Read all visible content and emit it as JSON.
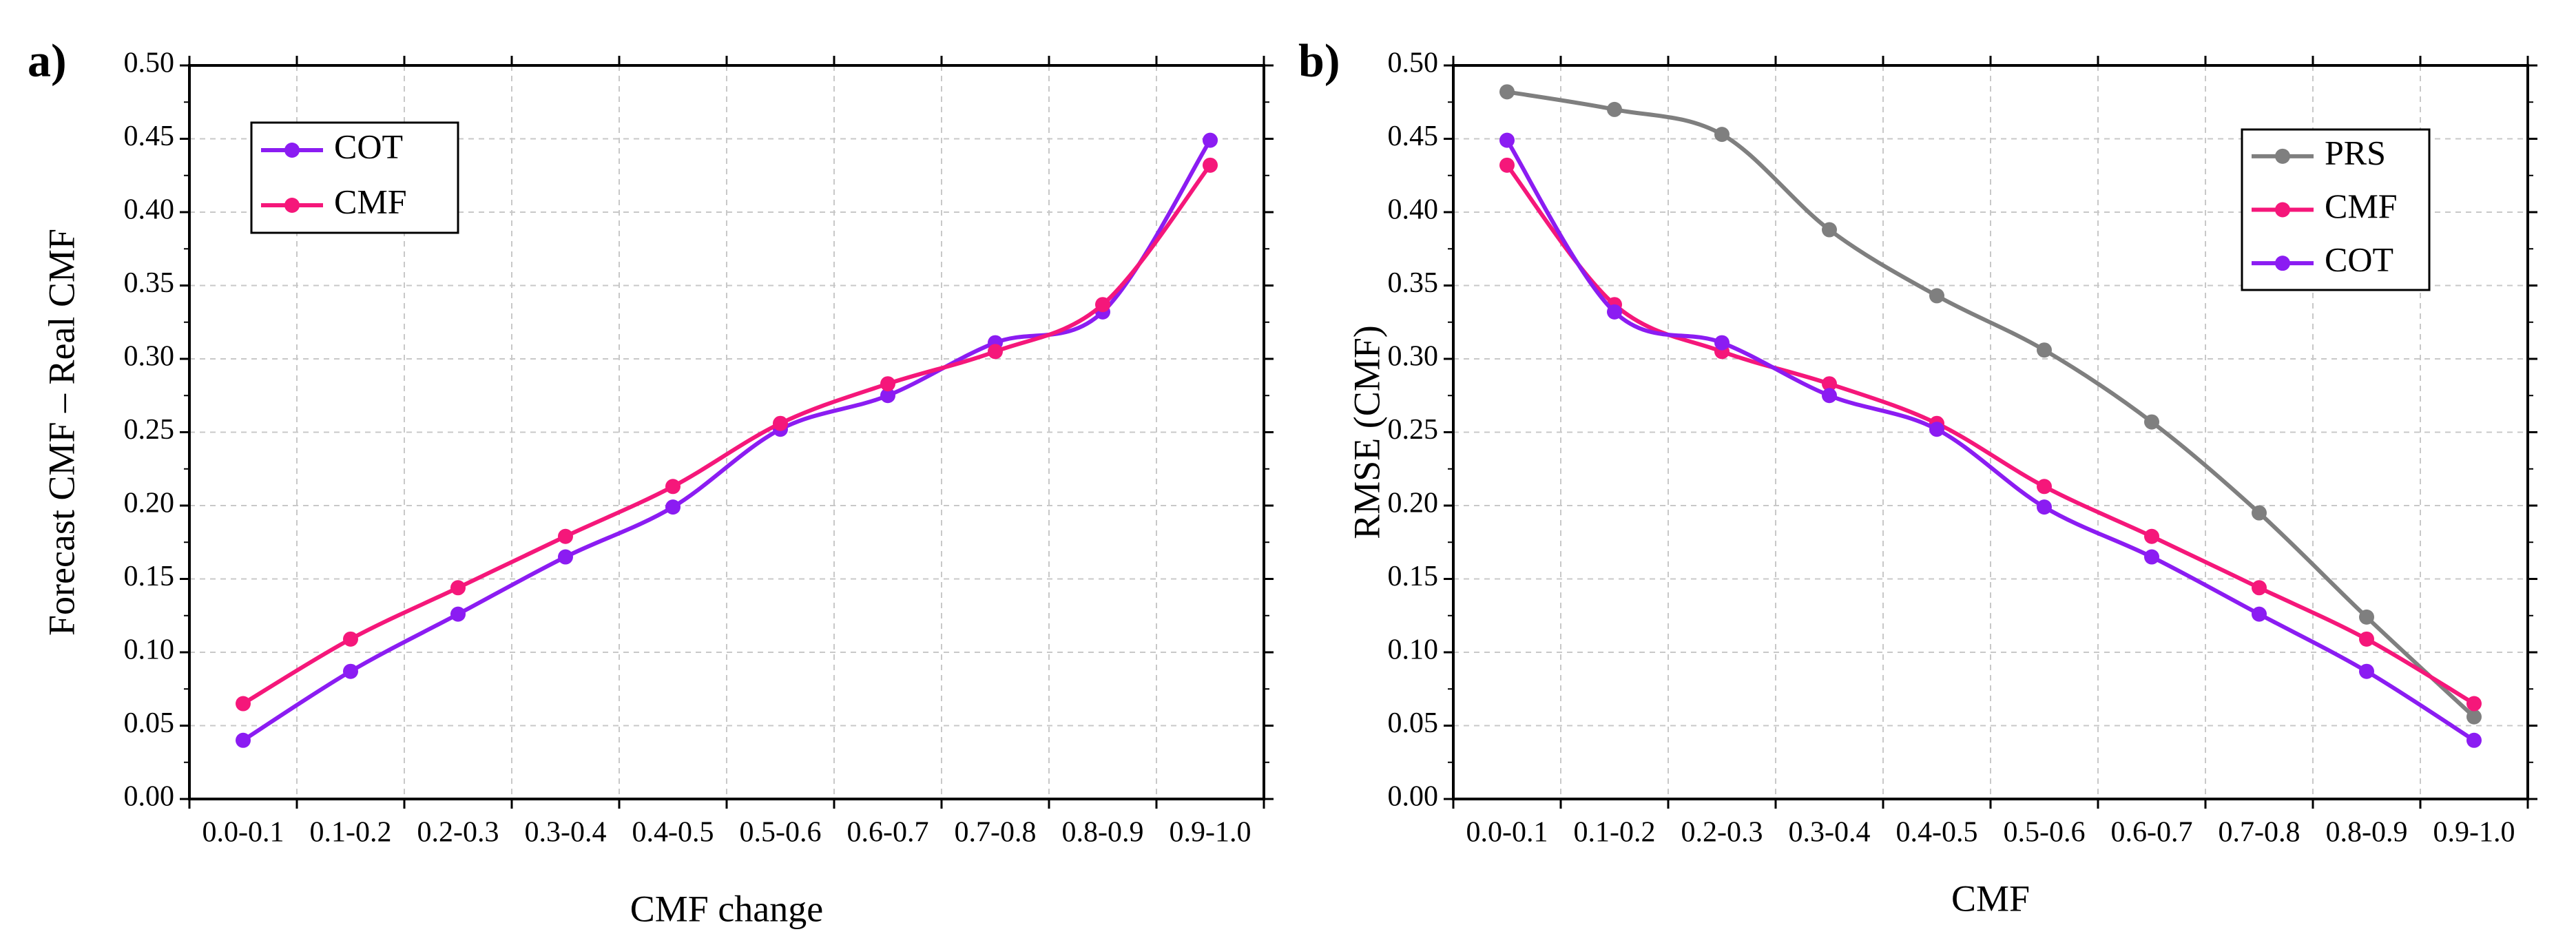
{
  "figure": {
    "panel_labels": [
      "a)",
      "b)"
    ]
  },
  "colors": {
    "COT": "#8b1cf2",
    "CMF": "#f5177a",
    "PRS": "#7f7f7f",
    "grid": "#c8c8c8",
    "axis": "#000000"
  },
  "chart_data": [
    {
      "id": "a",
      "panel_label": "a)",
      "type": "line",
      "title": "",
      "xlabel": "CMF change",
      "ylabel": "Forecast CMF – Real CMF",
      "categories": [
        "0.0-0.1",
        "0.1-0.2",
        "0.2-0.3",
        "0.3-0.4",
        "0.4-0.5",
        "0.5-0.6",
        "0.6-0.7",
        "0.7-0.8",
        "0.8-0.9",
        "0.9-1.0"
      ],
      "ylim": [
        0,
        0.5
      ],
      "yticks": [
        "0.00",
        "0.05",
        "0.10",
        "0.15",
        "0.20",
        "0.25",
        "0.30",
        "0.35",
        "0.40",
        "0.45",
        "0.50"
      ],
      "grid": true,
      "legend_position": "top-left",
      "legend": [
        "COT",
        "CMF"
      ],
      "series": [
        {
          "name": "COT",
          "color": "#8b1cf2",
          "values": [
            0.04,
            0.087,
            0.126,
            0.165,
            0.199,
            0.252,
            0.275,
            0.311,
            0.332,
            0.449
          ]
        },
        {
          "name": "CMF",
          "color": "#f5177a",
          "values": [
            0.065,
            0.109,
            0.144,
            0.179,
            0.213,
            0.256,
            0.283,
            0.305,
            0.337,
            0.432
          ]
        }
      ]
    },
    {
      "id": "b",
      "panel_label": "b)",
      "type": "line",
      "title": "",
      "xlabel": "CMF",
      "ylabel": "RMSE (CMF)",
      "categories": [
        "0.0-0.1",
        "0.1-0.2",
        "0.2-0.3",
        "0.3-0.4",
        "0.4-0.5",
        "0.5-0.6",
        "0.6-0.7",
        "0.7-0.8",
        "0.8-0.9",
        "0.9-1.0"
      ],
      "ylim": [
        0,
        0.5
      ],
      "yticks": [
        "0.00",
        "0.05",
        "0.10",
        "0.15",
        "0.20",
        "0.25",
        "0.30",
        "0.35",
        "0.40",
        "0.45",
        "0.50"
      ],
      "grid": true,
      "legend_position": "top-right",
      "legend": [
        "PRS",
        "CMF",
        "COT"
      ],
      "series": [
        {
          "name": "PRS",
          "color": "#7f7f7f",
          "values": [
            0.482,
            0.47,
            0.453,
            0.388,
            0.343,
            0.306,
            0.257,
            0.195,
            0.124,
            0.056
          ]
        },
        {
          "name": "CMF",
          "color": "#f5177a",
          "values": [
            0.432,
            0.337,
            0.305,
            0.283,
            0.256,
            0.213,
            0.179,
            0.144,
            0.109,
            0.065
          ]
        },
        {
          "name": "COT",
          "color": "#8b1cf2",
          "values": [
            0.449,
            0.332,
            0.311,
            0.275,
            0.252,
            0.199,
            0.165,
            0.126,
            0.087,
            0.04
          ]
        }
      ]
    }
  ]
}
